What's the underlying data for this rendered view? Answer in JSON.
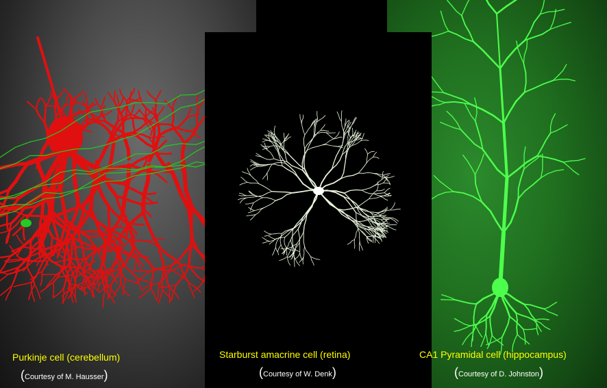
{
  "panels": [
    {
      "caption": "Purkinje cell (cerebellum)",
      "courtesy_open": "(",
      "courtesy": "Courtesy of M. Hausser",
      "courtesy_close": ")",
      "cell_color": "#e01010",
      "fiber_color": "#22cc22"
    },
    {
      "caption": "Starburst amacrine cell (retina)",
      "courtesy_open": "(",
      "courtesy": "Courtesy of W. Denk",
      "courtesy_close": ")",
      "cell_color": "#e8f5dc"
    },
    {
      "caption": "CA1 Pyramidal cell (hippocampus)",
      "courtesy_open": "(",
      "courtesy": "Courtesy of D. Johnston",
      "courtesy_close": ")",
      "cell_color": "#4dff4d"
    }
  ],
  "caption_color": "#ffff00"
}
